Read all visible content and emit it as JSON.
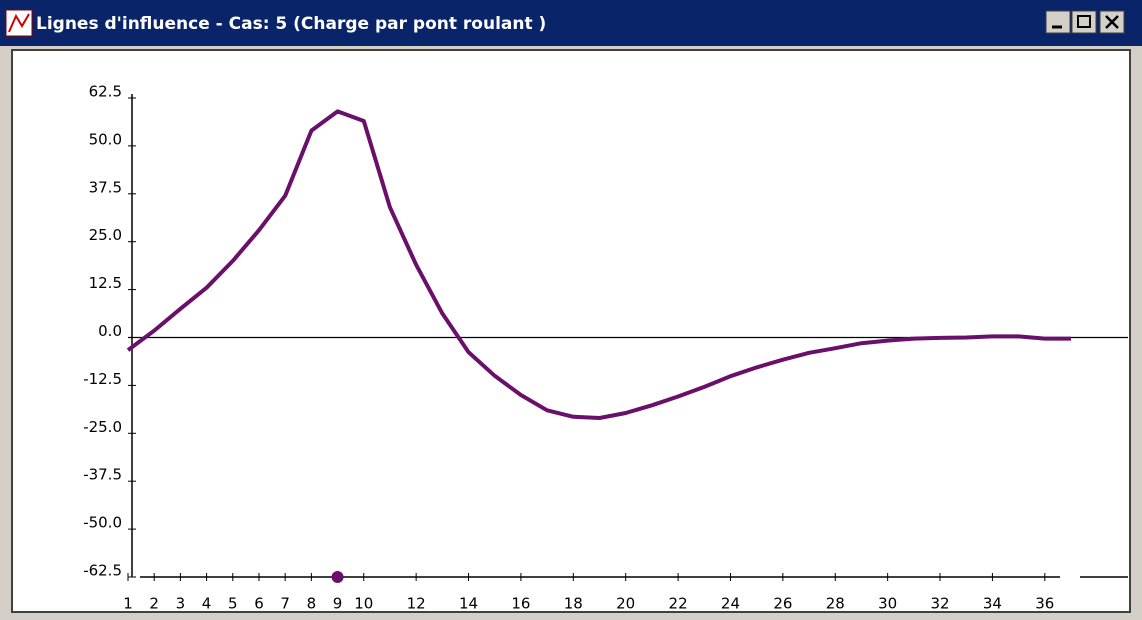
{
  "window": {
    "title": "Lignes d'influence - Cas: 5 (Charge par pont roulant  )"
  },
  "chart_data": {
    "type": "line",
    "x": [
      1,
      2,
      3,
      4,
      5,
      6,
      7,
      8,
      9,
      10,
      11,
      12,
      13,
      14,
      15,
      16,
      17,
      18,
      19,
      20,
      21,
      22,
      23,
      24,
      25,
      26,
      27,
      28,
      29,
      30,
      31,
      32,
      33,
      34,
      35,
      36,
      37
    ],
    "series": [
      {
        "color": "#6a0f6a",
        "values": [
          -3.3,
          1.8,
          7.5,
          13,
          20,
          28,
          37,
          54,
          59,
          56.5,
          34,
          19,
          6.3,
          -3.8,
          -10,
          -15,
          -19,
          -20.7,
          -21,
          -19.7,
          -17.7,
          -15.4,
          -12.9,
          -10.1,
          -7.8,
          -5.8,
          -4,
          -2.8,
          -1.5,
          -0.8,
          -0.3,
          -0.1,
          0,
          0.3,
          0.3,
          -0.3,
          -0.3
        ]
      }
    ],
    "xlim": [
      1,
      37
    ],
    "xticks": [
      1,
      2,
      3,
      4,
      5,
      6,
      7,
      8,
      9,
      10,
      12,
      14,
      16,
      18,
      20,
      22,
      24,
      26,
      28,
      30,
      32,
      34,
      36
    ],
    "ylim": [
      -62.5,
      62.5
    ],
    "yticks": [
      62.5,
      {
        "value": 50,
        "label": "50.0"
      },
      37.5,
      {
        "value": 25,
        "label": "25.0"
      },
      12.5,
      {
        "value": 0,
        "label": "0.0"
      },
      -12.5,
      {
        "value": -25,
        "label": "-25.0"
      },
      -37.5,
      {
        "value": -50,
        "label": "-50.0"
      },
      -62.5
    ],
    "selected_x": 9
  }
}
